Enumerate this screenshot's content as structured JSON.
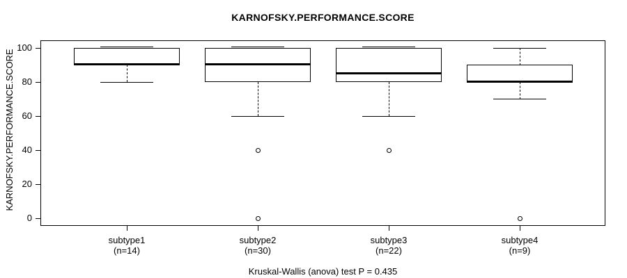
{
  "chart_data": {
    "type": "boxplot",
    "title": "KARNOFSKY.PERFORMANCE.SCORE",
    "ylabel": "KARNOFSKY.PERFORMANCE.SCORE",
    "xlabel": "",
    "ylim": [
      0,
      100
    ],
    "yticks": [
      0,
      20,
      40,
      60,
      80,
      100
    ],
    "grid": "off",
    "caption": "Kruskal-Wallis (anova) test P = 0.435",
    "line_color": "#000000",
    "background_color": "#ffffff",
    "groups": [
      {
        "label": "subtype1",
        "sublabel": "(n=14)",
        "n": 14,
        "whisker_low": 80,
        "q1": 90,
        "median": 90,
        "q3": 100,
        "whisker_high": 100,
        "outliers": []
      },
      {
        "label": "subtype2",
        "sublabel": "(n=30)",
        "n": 30,
        "whisker_low": 60,
        "q1": 80,
        "median": 90,
        "q3": 100,
        "whisker_high": 100,
        "outliers": [
          40,
          0
        ]
      },
      {
        "label": "subtype3",
        "sublabel": "(n=22)",
        "n": 22,
        "whisker_low": 60,
        "q1": 80,
        "median": 85,
        "q3": 100,
        "whisker_high": 100,
        "outliers": [
          40
        ]
      },
      {
        "label": "subtype4",
        "sublabel": "(n=9)",
        "n": 9,
        "whisker_low": 70,
        "q1": 80,
        "median": 80,
        "q3": 90,
        "whisker_high": 100,
        "outliers": [
          0
        ]
      }
    ]
  }
}
